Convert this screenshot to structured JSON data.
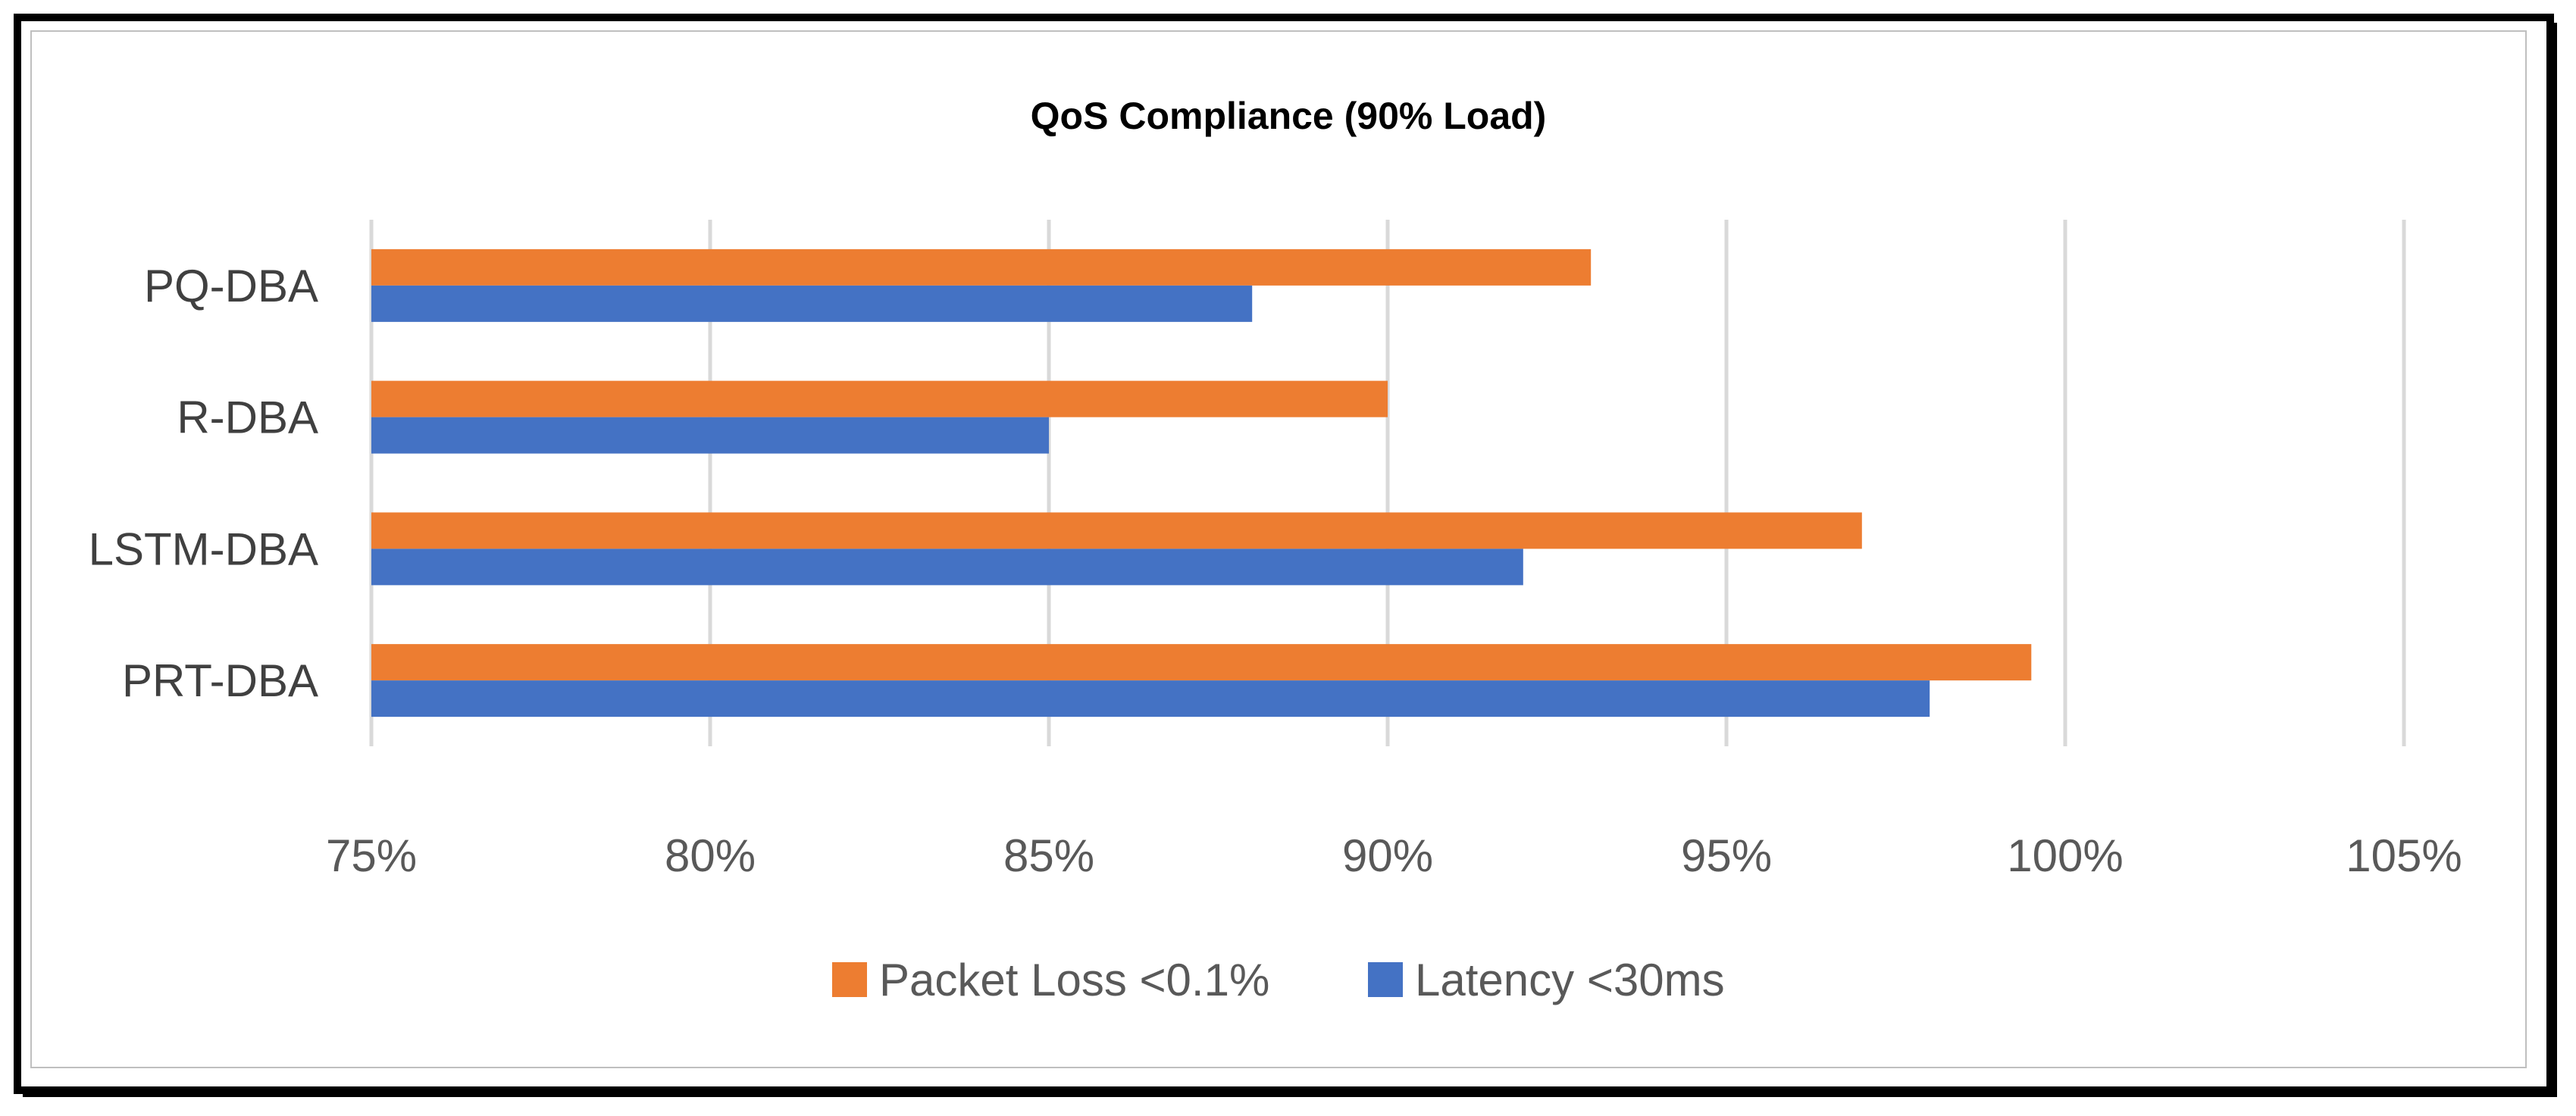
{
  "chart_data": {
    "type": "bar",
    "orientation": "horizontal",
    "title": "QoS Compliance (90% Load)",
    "xlabel": "",
    "ylabel": "",
    "xlim": [
      0.75,
      1.05
    ],
    "x_ticks": [
      0.75,
      0.8,
      0.85,
      0.9,
      0.95,
      1.0,
      1.05
    ],
    "x_tick_labels": [
      "75%",
      "80%",
      "85%",
      "90%",
      "95%",
      "100%",
      "105%"
    ],
    "grid": true,
    "legend_position": "bottom",
    "categories": [
      "PQ-DBA",
      "R-DBA",
      "LSTM-DBA",
      "PRT-DBA"
    ],
    "series": [
      {
        "name": "Packet Loss <0.1%",
        "color": "#ED7D31",
        "values": [
          0.93,
          0.9,
          0.97,
          0.995
        ]
      },
      {
        "name": "Latency <30ms",
        "color": "#4472C4",
        "values": [
          0.88,
          0.85,
          0.92,
          0.98
        ]
      }
    ]
  }
}
